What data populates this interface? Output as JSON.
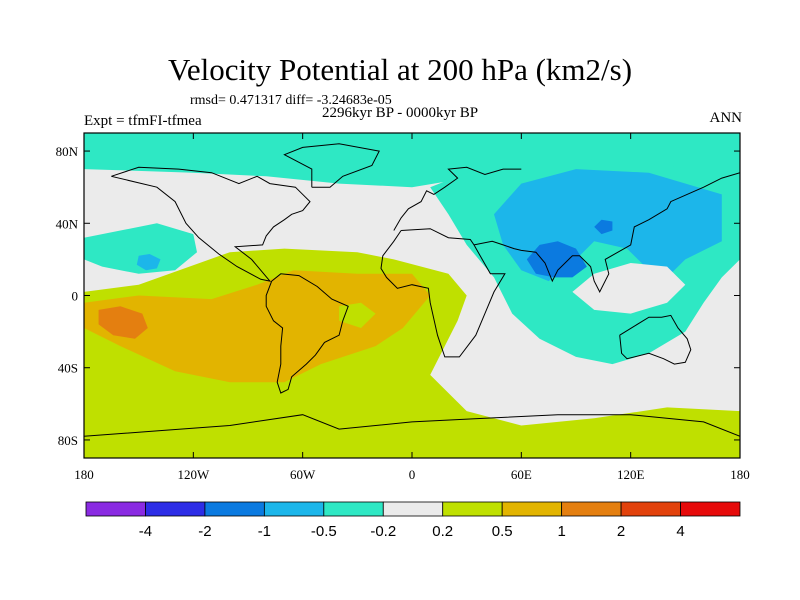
{
  "chart_data": {
    "type": "heatmap",
    "title": "Velocity Potential at 200 hPa (km2/s)",
    "stats_line": "rmsd= 0.471317  diff= -3.24683e-05",
    "left_subtitle": "Expt = tfmFI-tfmea",
    "center_subtitle": "2296kyr BP - 0000kyr BP",
    "right_subtitle": "ANN",
    "xlim": [
      -180,
      180
    ],
    "ylim": [
      -90,
      90
    ],
    "x_ticks": [
      {
        "value": -180,
        "label": "180"
      },
      {
        "value": -120,
        "label": "120W"
      },
      {
        "value": -60,
        "label": "60W"
      },
      {
        "value": 0,
        "label": "0"
      },
      {
        "value": 60,
        "label": "60E"
      },
      {
        "value": 120,
        "label": "120E"
      },
      {
        "value": 180,
        "label": "180"
      }
    ],
    "y_ticks": [
      {
        "value": 80,
        "label": "80N"
      },
      {
        "value": 40,
        "label": "40N"
      },
      {
        "value": 0,
        "label": "0"
      },
      {
        "value": -40,
        "label": "40S"
      },
      {
        "value": -80,
        "label": "80S"
      }
    ],
    "contour_levels": [
      "-4",
      "-2",
      "-1",
      "-0.5",
      "-0.2",
      "0.2",
      "0.5",
      "1",
      "2",
      "4"
    ],
    "colors": [
      "#8a2be2",
      "#2d2de6",
      "#0b7ae0",
      "#1cb6ea",
      "#2ee8c4",
      "#ebebeb",
      "#bfe000",
      "#e2b400",
      "#e47f10",
      "#e2420c",
      "#e60a0a"
    ],
    "anomaly_regions": [
      {
        "name": "arctic-band",
        "level_index": 4,
        "polygon": [
          [
            -180,
            90
          ],
          [
            180,
            90
          ],
          [
            180,
            62
          ],
          [
            120,
            66
          ],
          [
            60,
            70
          ],
          [
            0,
            60
          ],
          [
            -40,
            62
          ],
          [
            -80,
            66
          ],
          [
            -120,
            68
          ],
          [
            -180,
            70
          ]
        ]
      },
      {
        "name": "north-pacific-belt",
        "level_index": 4,
        "polygon": [
          [
            -180,
            32
          ],
          [
            -160,
            36
          ],
          [
            -140,
            40
          ],
          [
            -120,
            34
          ],
          [
            -118,
            24
          ],
          [
            -130,
            14
          ],
          [
            -150,
            12
          ],
          [
            -170,
            16
          ],
          [
            -180,
            20
          ]
        ]
      },
      {
        "name": "north-pacific-core",
        "level_index": 3,
        "polygon": [
          [
            -150,
            22
          ],
          [
            -144,
            23
          ],
          [
            -138,
            20
          ],
          [
            -140,
            15
          ],
          [
            -146,
            14
          ],
          [
            -151,
            17
          ]
        ]
      },
      {
        "name": "asia-outer",
        "level_index": 4,
        "polygon": [
          [
            10,
            60
          ],
          [
            40,
            72
          ],
          [
            90,
            76
          ],
          [
            140,
            72
          ],
          [
            180,
            66
          ],
          [
            180,
            20
          ],
          [
            170,
            10
          ],
          [
            160,
            -4
          ],
          [
            150,
            -20
          ],
          [
            130,
            -32
          ],
          [
            110,
            -38
          ],
          [
            90,
            -34
          ],
          [
            70,
            -24
          ],
          [
            55,
            -10
          ],
          [
            45,
            10
          ],
          [
            30,
            28
          ],
          [
            20,
            45
          ]
        ]
      },
      {
        "name": "asia-mid",
        "level_index": 3,
        "polygon": [
          [
            45,
            45
          ],
          [
            60,
            62
          ],
          [
            90,
            70
          ],
          [
            130,
            68
          ],
          [
            170,
            56
          ],
          [
            170,
            30
          ],
          [
            150,
            20
          ],
          [
            140,
            10
          ],
          [
            130,
            14
          ],
          [
            118,
            26
          ],
          [
            100,
            30
          ],
          [
            90,
            20
          ],
          [
            75,
            8
          ],
          [
            60,
            14
          ],
          [
            50,
            28
          ]
        ]
      },
      {
        "name": "asia-core-1",
        "level_index": 2,
        "polygon": [
          [
            63,
            20
          ],
          [
            70,
            28
          ],
          [
            80,
            30
          ],
          [
            90,
            26
          ],
          [
            96,
            16
          ],
          [
            88,
            10
          ],
          [
            78,
            10
          ],
          [
            68,
            12
          ]
        ]
      },
      {
        "name": "asia-core-2",
        "level_index": 2,
        "polygon": [
          [
            100,
            38
          ],
          [
            104,
            42
          ],
          [
            110,
            41
          ],
          [
            110,
            36
          ],
          [
            104,
            34
          ]
        ]
      },
      {
        "name": "indonesia-gap",
        "level_index": 5,
        "polygon": [
          [
            88,
            2
          ],
          [
            100,
            12
          ],
          [
            120,
            18
          ],
          [
            140,
            16
          ],
          [
            150,
            6
          ],
          [
            140,
            -4
          ],
          [
            120,
            -10
          ],
          [
            100,
            -8
          ]
        ]
      },
      {
        "name": "tropical-outer",
        "level_index": 6,
        "polygon": [
          [
            -180,
            -90
          ],
          [
            180,
            -90
          ],
          [
            180,
            -64
          ],
          [
            140,
            -62
          ],
          [
            100,
            -68
          ],
          [
            60,
            -72
          ],
          [
            30,
            -64
          ],
          [
            10,
            -44
          ],
          [
            25,
            -14
          ],
          [
            30,
            0
          ],
          [
            20,
            12
          ],
          [
            -10,
            20
          ],
          [
            -30,
            24
          ],
          [
            -70,
            26
          ],
          [
            -100,
            24
          ],
          [
            -150,
            6
          ],
          [
            -180,
            2
          ]
        ]
      },
      {
        "name": "tropical-mid",
        "level_index": 7,
        "polygon": [
          [
            -180,
            -4
          ],
          [
            -150,
            0
          ],
          [
            -110,
            -2
          ],
          [
            -85,
            6
          ],
          [
            -65,
            14
          ],
          [
            -30,
            12
          ],
          [
            0,
            12
          ],
          [
            10,
            0
          ],
          [
            -5,
            -18
          ],
          [
            -20,
            -28
          ],
          [
            -50,
            -38
          ],
          [
            -70,
            -48
          ],
          [
            -100,
            -48
          ],
          [
            -130,
            -42
          ],
          [
            -160,
            -28
          ],
          [
            -180,
            -18
          ]
        ]
      },
      {
        "name": "pacific-core",
        "level_index": 8,
        "polygon": [
          [
            -172,
            -8
          ],
          [
            -160,
            -6
          ],
          [
            -148,
            -10
          ],
          [
            -145,
            -18
          ],
          [
            -152,
            -24
          ],
          [
            -164,
            -22
          ],
          [
            -172,
            -16
          ]
        ]
      },
      {
        "name": "atlantic-hole",
        "level_index": 6,
        "polygon": [
          [
            -40,
            -6
          ],
          [
            -28,
            -4
          ],
          [
            -20,
            -10
          ],
          [
            -28,
            -18
          ],
          [
            -40,
            -14
          ]
        ]
      }
    ],
    "coastline_segments": [
      {
        "name": "north-america",
        "points": [
          [
            -165,
            66
          ],
          [
            -140,
            60
          ],
          [
            -130,
            52
          ],
          [
            -124,
            40
          ],
          [
            -117,
            32
          ],
          [
            -106,
            23
          ],
          [
            -96,
            16
          ],
          [
            -83,
            9
          ],
          [
            -78,
            8
          ],
          [
            -88,
            20
          ],
          [
            -97,
            27
          ],
          [
            -82,
            28
          ],
          [
            -80,
            33
          ],
          [
            -76,
            38
          ],
          [
            -70,
            42
          ],
          [
            -66,
            45
          ],
          [
            -60,
            47
          ],
          [
            -56,
            52
          ],
          [
            -64,
            60
          ],
          [
            -78,
            62
          ],
          [
            -85,
            66
          ],
          [
            -95,
            62
          ],
          [
            -110,
            68
          ],
          [
            -128,
            70
          ],
          [
            -150,
            71
          ],
          [
            -165,
            66
          ]
        ]
      },
      {
        "name": "greenland",
        "points": [
          [
            -55,
            60
          ],
          [
            -45,
            60
          ],
          [
            -38,
            66
          ],
          [
            -22,
            72
          ],
          [
            -18,
            80
          ],
          [
            -40,
            84
          ],
          [
            -60,
            82
          ],
          [
            -70,
            78
          ],
          [
            -55,
            70
          ],
          [
            -55,
            60
          ]
        ]
      },
      {
        "name": "south-america",
        "points": [
          [
            -77,
            8
          ],
          [
            -72,
            12
          ],
          [
            -62,
            11
          ],
          [
            -52,
            5
          ],
          [
            -44,
            -2
          ],
          [
            -35,
            -6
          ],
          [
            -38,
            -14
          ],
          [
            -40,
            -22
          ],
          [
            -48,
            -26
          ],
          [
            -53,
            -33
          ],
          [
            -58,
            -38
          ],
          [
            -66,
            -45
          ],
          [
            -68,
            -52
          ],
          [
            -72,
            -54
          ],
          [
            -74,
            -48
          ],
          [
            -72,
            -38
          ],
          [
            -72,
            -28
          ],
          [
            -71,
            -18
          ],
          [
            -76,
            -14
          ],
          [
            -80,
            -6
          ],
          [
            -80,
            0
          ],
          [
            -77,
            8
          ]
        ]
      },
      {
        "name": "europe-africa",
        "points": [
          [
            -10,
            36
          ],
          [
            -6,
            43
          ],
          [
            -2,
            48
          ],
          [
            5,
            52
          ],
          [
            8,
            58
          ],
          [
            12,
            56
          ],
          [
            18,
            60
          ],
          [
            25,
            65
          ],
          [
            20,
            70
          ],
          [
            30,
            71
          ],
          [
            40,
            67
          ],
          [
            50,
            70
          ],
          [
            60,
            70
          ]
        ]
      },
      {
        "name": "africa",
        "points": [
          [
            -6,
            36
          ],
          [
            10,
            37
          ],
          [
            20,
            32
          ],
          [
            32,
            31
          ],
          [
            34,
            28
          ],
          [
            43,
            12
          ],
          [
            51,
            12
          ],
          [
            45,
            2
          ],
          [
            40,
            -10
          ],
          [
            35,
            -22
          ],
          [
            26,
            -34
          ],
          [
            18,
            -34
          ],
          [
            14,
            -22
          ],
          [
            10,
            -4
          ],
          [
            9,
            4
          ],
          [
            0,
            6
          ],
          [
            -8,
            4
          ],
          [
            -14,
            10
          ],
          [
            -17,
            15
          ],
          [
            -16,
            22
          ],
          [
            -10,
            30
          ],
          [
            -6,
            36
          ]
        ]
      },
      {
        "name": "asia-south",
        "points": [
          [
            34,
            28
          ],
          [
            44,
            30
          ],
          [
            50,
            28
          ],
          [
            56,
            26
          ],
          [
            60,
            25
          ],
          [
            68,
            24
          ],
          [
            73,
            18
          ],
          [
            77,
            8
          ],
          [
            80,
            14
          ],
          [
            88,
            22
          ],
          [
            92,
            22
          ],
          [
            98,
            16
          ],
          [
            100,
            8
          ],
          [
            103,
            2
          ],
          [
            108,
            12
          ],
          [
            106,
            20
          ],
          [
            120,
            28
          ],
          [
            122,
            38
          ],
          [
            126,
            40
          ],
          [
            130,
            42
          ],
          [
            140,
            48
          ],
          [
            142,
            52
          ],
          [
            160,
            60
          ],
          [
            170,
            65
          ],
          [
            180,
            68
          ]
        ]
      },
      {
        "name": "australia",
        "points": [
          [
            114,
            -22
          ],
          [
            122,
            -17
          ],
          [
            130,
            -12
          ],
          [
            137,
            -12
          ],
          [
            142,
            -11
          ],
          [
            146,
            -18
          ],
          [
            151,
            -24
          ],
          [
            153,
            -30
          ],
          [
            150,
            -37
          ],
          [
            144,
            -38
          ],
          [
            138,
            -35
          ],
          [
            130,
            -32
          ],
          [
            118,
            -35
          ],
          [
            115,
            -32
          ],
          [
            114,
            -22
          ]
        ]
      },
      {
        "name": "antarctica",
        "points": [
          [
            -180,
            -78
          ],
          [
            -140,
            -75
          ],
          [
            -100,
            -72
          ],
          [
            -60,
            -66
          ],
          [
            -40,
            -74
          ],
          [
            0,
            -70
          ],
          [
            40,
            -68
          ],
          [
            80,
            -66
          ],
          [
            120,
            -66
          ],
          [
            160,
            -70
          ],
          [
            180,
            -78
          ]
        ]
      }
    ]
  }
}
